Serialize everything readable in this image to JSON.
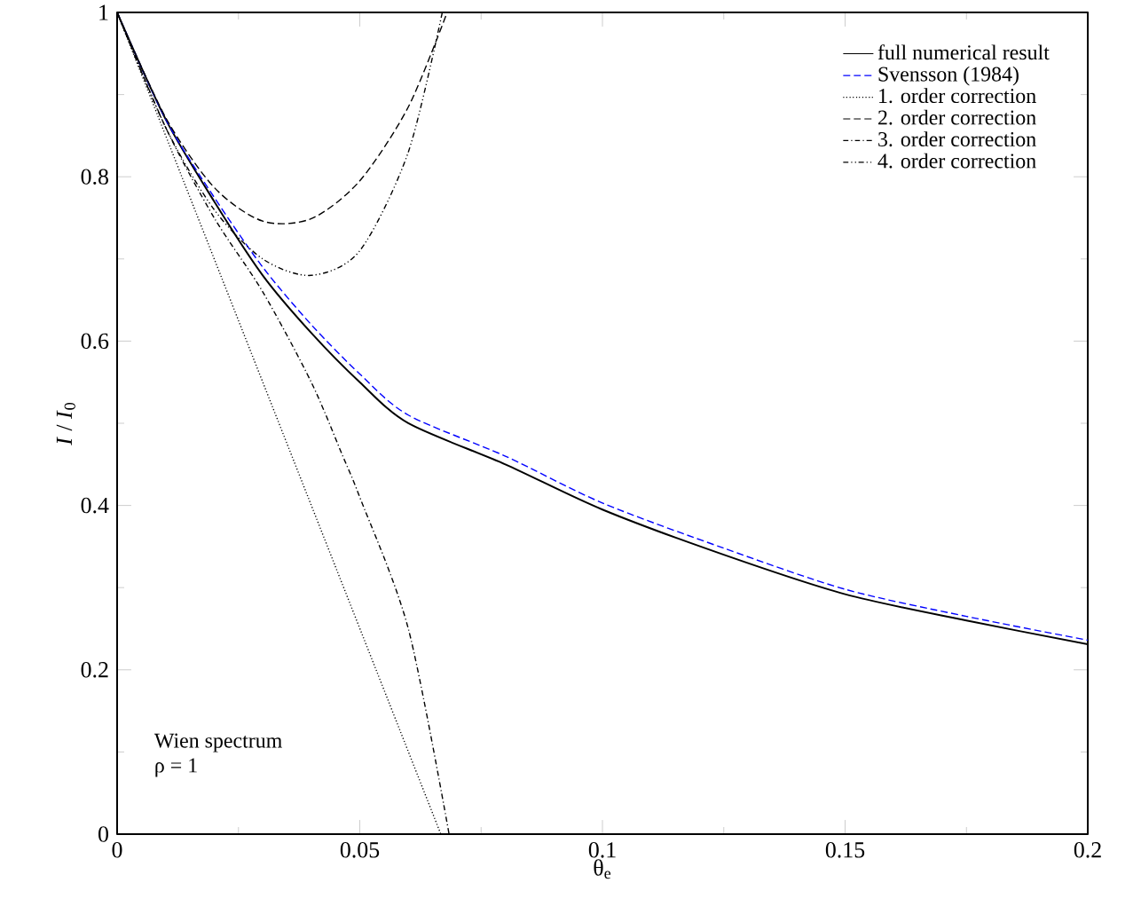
{
  "chart_data": {
    "type": "line",
    "xlabel": "θ$_{e}$",
    "ylabel": "*I* / *I*$_{0}$",
    "annotations": [
      "Wien spectrum",
      "ρ = 1"
    ],
    "xlim": [
      0,
      0.2
    ],
    "ylim": [
      0,
      1
    ],
    "xticks": [
      0,
      0.05,
      0.1,
      0.15,
      0.2
    ],
    "yticks": [
      0,
      0.2,
      0.4,
      0.6,
      0.8,
      1
    ],
    "grid": false,
    "legend": "top right",
    "marker": "none",
    "series": [
      {
        "name": "full numerical result",
        "color": "#000000",
        "line_style": "solid",
        "x": [
          0,
          0.01,
          0.02,
          0.03,
          0.04,
          0.05,
          0.06,
          0.08,
          0.1,
          0.125,
          0.15,
          0.175,
          0.2
        ],
        "values": [
          1,
          0.87,
          0.77,
          0.68,
          0.61,
          0.55,
          0.5,
          0.45,
          0.395,
          0.34,
          0.292,
          0.26,
          0.231
        ]
      },
      {
        "name": "Svensson (1984)",
        "color": "#0000ff",
        "line_style": "dashed",
        "x": [
          0,
          0.01,
          0.02,
          0.03,
          0.04,
          0.05,
          0.06,
          0.08,
          0.1,
          0.125,
          0.15,
          0.175,
          0.2
        ],
        "values": [
          1,
          0.87,
          0.775,
          0.69,
          0.62,
          0.56,
          0.51,
          0.46,
          0.403,
          0.348,
          0.298,
          0.265,
          0.236
        ]
      },
      {
        "name": "1. order correction",
        "color": "#000000",
        "line_style": "dotted",
        "x": [
          0,
          0.0667
        ],
        "values": [
          1,
          0
        ]
      },
      {
        "name": "2. order correction",
        "color": "#000000",
        "line_style": "dashed",
        "x": [
          0,
          0.01,
          0.02,
          0.03,
          0.04,
          0.05,
          0.06,
          0.068
        ],
        "values": [
          1,
          0.872,
          0.787,
          0.746,
          0.749,
          0.795,
          0.885,
          1
        ]
      },
      {
        "name": "3. order correction",
        "color": "#000000",
        "line_style": "dashdot",
        "x": [
          0,
          0.01,
          0.02,
          0.03,
          0.04,
          0.0465,
          0.05,
          0.06,
          0.0684
        ],
        "values": [
          1,
          0.86,
          0.75,
          0.66,
          0.55,
          0.46,
          0.41,
          0.25,
          0
        ]
      },
      {
        "name": "4. order correction",
        "color": "#000000",
        "line_style": "dashdotdot",
        "x": [
          0,
          0.01,
          0.02,
          0.03,
          0.04,
          0.05,
          0.06,
          0.067
        ],
        "values": [
          1,
          0.86,
          0.76,
          0.7,
          0.68,
          0.71,
          0.83,
          1
        ]
      }
    ]
  }
}
